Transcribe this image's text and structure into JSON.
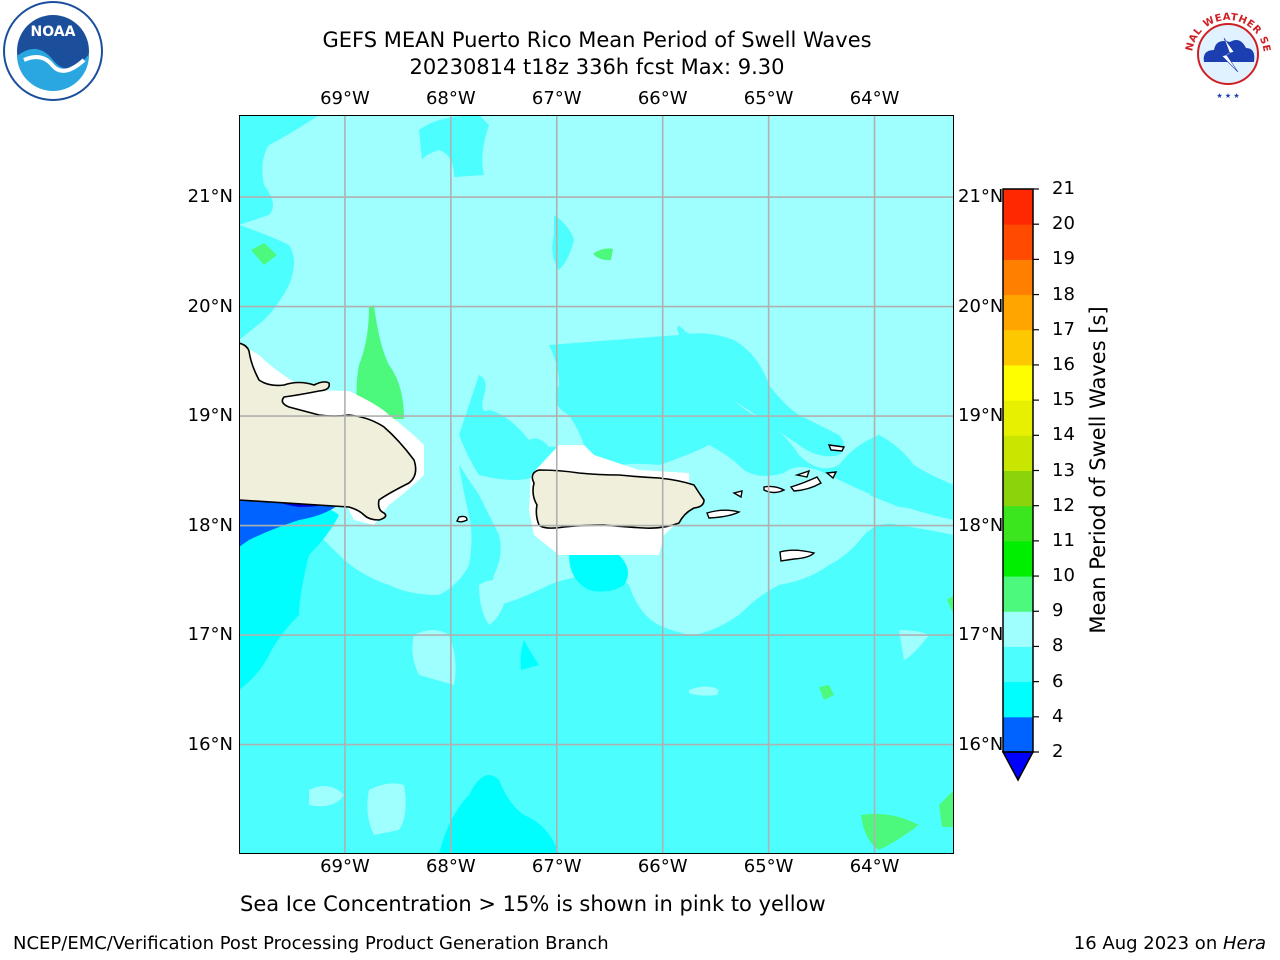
{
  "title": {
    "line1": "GEFS MEAN Puerto Rico Mean Period of Swell Waves",
    "line2": "20230814 t18z 336h fcst   Max: 9.30"
  },
  "map": {
    "lon_labels": [
      "69°W",
      "68°W",
      "67°W",
      "66°W",
      "65°W",
      "64°W"
    ],
    "lat_labels": [
      "21°N",
      "20°N",
      "19°N",
      "18°N",
      "17°N",
      "16°N"
    ],
    "lon_range": [
      -70.0,
      -63.25
    ],
    "lat_range": [
      15.0,
      21.75
    ],
    "ocean_base_color": "#9ffefe"
  },
  "colorbar": {
    "label": "Mean Period of Swell Waves [s]",
    "ticks": [
      "2",
      "4",
      "6",
      "8",
      "9",
      "10",
      "11",
      "12",
      "13",
      "14",
      "15",
      "16",
      "17",
      "18",
      "19",
      "20",
      "21"
    ],
    "colors": [
      "#0063ff",
      "#00fefe",
      "#4cfefe",
      "#9ffefe",
      "#4cf97c",
      "#00ef00",
      "#3ce61e",
      "#8cd30b",
      "#c8e600",
      "#e6f000",
      "#fefe00",
      "#fec800",
      "#ffa500",
      "#ff7f00",
      "#ff4a00",
      "#ff2800",
      "#ff0000"
    ],
    "extend_color": "#0000ff"
  },
  "footer": {
    "note": "Sea Ice Concentration > 15% is shown in pink to yellow",
    "left": "NCEP/EMC/Verification Post Processing Product Generation Branch",
    "right_date": "16 Aug 2023 on ",
    "right_host": "Hera"
  },
  "logos": {
    "noaa_text": "NOAA",
    "nws_text": "NATIONAL WEATHER SERVICE"
  }
}
